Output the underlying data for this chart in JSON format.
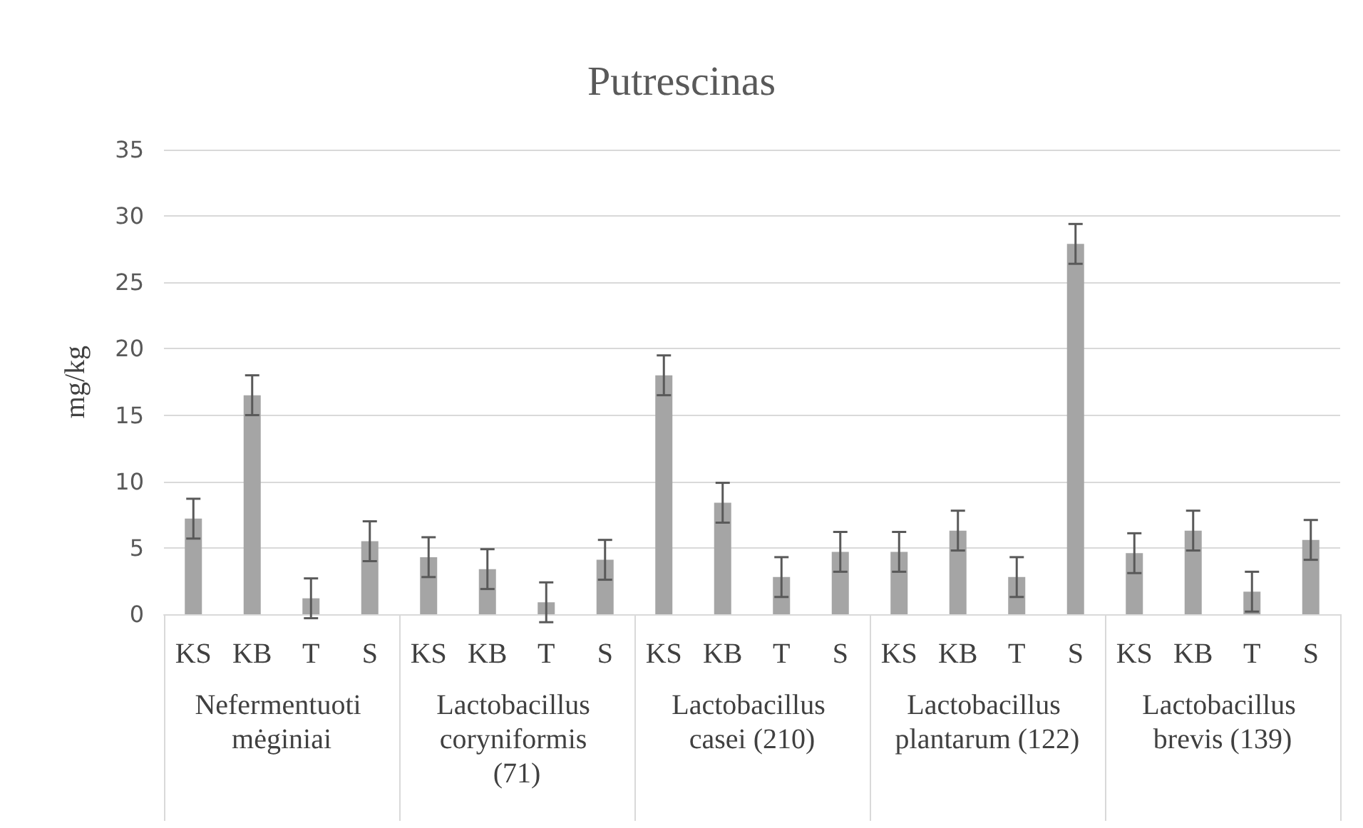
{
  "chart_data": {
    "type": "bar",
    "title": "Putrescinas",
    "ylabel": "mg/kg",
    "categories": [
      "KS",
      "KB",
      "T",
      "S",
      "KS",
      "KB",
      "T",
      "S",
      "KS",
      "KB",
      "T",
      "S",
      "KS",
      "KB",
      "T",
      "S",
      "KS",
      "KB",
      "T",
      "S"
    ],
    "annotations": [
      "Nefermentuoti mėginiai",
      "Lactobacillus coryniformis (71)",
      "Lactobacillus casei (210)",
      "Lactobacillus plantarum (122)",
      "Lactobacillus brevis (139)"
    ],
    "series": [
      {
        "color": "#a5a5a5",
        "values": [
          7.2,
          16.5,
          1.2,
          5.5,
          4.3,
          3.4,
          0.9,
          4.1,
          18.0,
          8.4,
          2.8,
          4.7,
          4.7,
          6.3,
          2.8,
          27.9,
          4.6,
          6.3,
          1.7,
          5.6
        ],
        "errors": [
          1.5,
          1.5,
          1.5,
          1.5,
          1.5,
          1.5,
          1.5,
          1.5,
          1.5,
          1.5,
          1.5,
          1.5,
          1.5,
          1.5,
          1.5,
          1.5,
          1.5,
          1.5,
          1.5,
          1.5
        ]
      }
    ],
    "ylim": [
      0,
      35
    ],
    "yticks": [
      0,
      5,
      10,
      15,
      20,
      25,
      30,
      35
    ],
    "grid": "y"
  }
}
